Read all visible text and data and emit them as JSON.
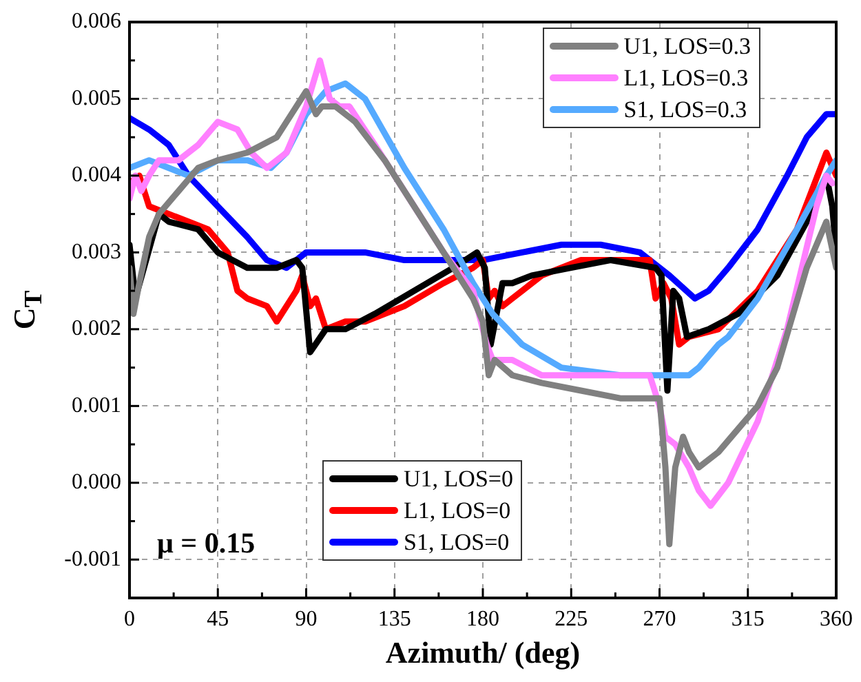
{
  "chart_data": {
    "type": "line",
    "xlabel": "Azimuth/ (deg)",
    "ylabel": "C$_{T}$",
    "annotations": [
      "μ = 0.15"
    ],
    "xlim": [
      0,
      360
    ],
    "xticks": [
      0,
      {
        "value": 22.5,
        "label": null
      },
      45,
      {
        "value": 67.5,
        "label": null
      },
      90,
      {
        "value": 112.5,
        "label": null
      },
      135,
      {
        "value": 157.5,
        "label": null
      },
      180,
      {
        "value": 202.5,
        "label": null
      },
      225,
      {
        "value": 247.5,
        "label": null
      },
      270,
      {
        "value": 292.5,
        "label": null
      },
      315,
      {
        "value": 337.5,
        "label": null
      },
      360
    ],
    "ylim": [
      -0.0015,
      0.006
    ],
    "yticks": [
      {
        "value": -0.0015,
        "label": null
      },
      -0.001,
      {
        "value": -0.0005,
        "label": null
      },
      {
        "value": 0,
        "label": "0.000"
      },
      {
        "value": 0.0005,
        "label": null
      },
      0.001,
      {
        "value": 0.0015,
        "label": null
      },
      0.002,
      {
        "value": 0.0025,
        "label": null
      },
      0.003,
      {
        "value": 0.0035,
        "label": null
      },
      0.004,
      {
        "value": 0.0045,
        "label": null
      },
      0.005,
      {
        "value": 0.0055,
        "label": null
      },
      0.006
    ],
    "grid": true,
    "legend": "top right",
    "line_style": "solid",
    "marker": "none",
    "series": [
      {
        "name": "U1, LOS=0.3",
        "color": "#808080",
        "x": [
          0,
          2,
          5,
          10,
          15,
          25,
          35,
          45,
          60,
          75,
          85,
          90,
          95,
          98,
          105,
          115,
          130,
          145,
          160,
          175,
          180,
          183,
          186,
          195,
          210,
          230,
          250,
          270,
          273,
          275,
          278,
          282,
          285,
          290,
          300,
          310,
          320,
          330,
          345,
          355,
          360
        ],
        "values": [
          0.0028,
          0.0022,
          0.0026,
          0.0032,
          0.0035,
          0.0038,
          0.0041,
          0.0042,
          0.0043,
          0.0045,
          0.0049,
          0.0051,
          0.0048,
          0.0049,
          0.0049,
          0.0047,
          0.0042,
          0.0036,
          0.003,
          0.0024,
          0.0021,
          0.0014,
          0.0016,
          0.0014,
          0.0013,
          0.0012,
          0.0011,
          0.0011,
          0.0002,
          -0.0008,
          0.0002,
          0.0006,
          0.0004,
          0.0002,
          0.0004,
          0.0007,
          0.001,
          0.0015,
          0.0028,
          0.0034,
          0.0028
        ]
      },
      {
        "name": "L1, LOS=0.3",
        "color": "#ff80ff",
        "x": [
          0,
          3,
          6,
          10,
          15,
          25,
          35,
          45,
          55,
          62,
          70,
          80,
          90,
          97,
          102,
          107,
          112,
          125,
          145,
          160,
          175,
          182,
          185,
          195,
          210,
          240,
          265,
          270,
          273,
          278,
          285,
          290,
          296,
          305,
          320,
          335,
          350,
          355,
          358
        ],
        "values": [
          0.0037,
          0.004,
          0.0038,
          0.004,
          0.0042,
          0.0042,
          0.0044,
          0.0047,
          0.0046,
          0.0043,
          0.0041,
          0.0043,
          0.0049,
          0.0055,
          0.005,
          0.0049,
          0.0049,
          0.0044,
          0.0036,
          0.003,
          0.0025,
          0.0018,
          0.0016,
          0.0016,
          0.0014,
          0.0014,
          0.0014,
          0.001,
          0.0006,
          0.0005,
          0.0002,
          -0.0001,
          -0.0003,
          0,
          0.0008,
          0.002,
          0.0036,
          0.004,
          0.0039
        ]
      },
      {
        "name": "S1, LOS=0.3",
        "color": "#55aaff",
        "x": [
          0,
          10,
          20,
          30,
          45,
          60,
          72,
          80,
          90,
          100,
          110,
          120,
          140,
          160,
          175,
          185,
          200,
          220,
          250,
          270,
          285,
          290,
          300,
          305,
          320,
          340,
          355,
          360
        ],
        "values": [
          0.0041,
          0.0042,
          0.0041,
          0.004,
          0.0042,
          0.0042,
          0.0041,
          0.0043,
          0.0048,
          0.0051,
          0.0052,
          0.005,
          0.0041,
          0.0033,
          0.0026,
          0.0022,
          0.0018,
          0.0015,
          0.0014,
          0.0014,
          0.0014,
          0.0015,
          0.0018,
          0.0019,
          0.0024,
          0.0033,
          0.004,
          0.0042
        ]
      },
      {
        "name": "U1, LOS=0",
        "color": "#000000",
        "x": [
          0,
          3,
          15,
          20,
          35,
          45,
          60,
          75,
          85,
          88,
          92,
          100,
          110,
          125,
          145,
          165,
          177,
          181,
          184,
          190,
          195,
          205,
          225,
          245,
          268,
          271,
          274,
          277,
          280,
          284,
          295,
          310,
          330,
          345,
          355,
          358,
          360
        ],
        "values": [
          0.0031,
          0.0024,
          0.0035,
          0.0034,
          0.0033,
          0.003,
          0.0028,
          0.0028,
          0.0029,
          0.0028,
          0.0017,
          0.002,
          0.002,
          0.0022,
          0.0025,
          0.0028,
          0.003,
          0.0028,
          0.0018,
          0.0026,
          0.0026,
          0.0027,
          0.0028,
          0.0029,
          0.0028,
          0.0027,
          0.0012,
          0.0025,
          0.0024,
          0.0019,
          0.002,
          0.0022,
          0.0027,
          0.0034,
          0.004,
          0.0036,
          0.003
        ]
      },
      {
        "name": "L1, LOS=0",
        "color": "#ff0000",
        "x": [
          0,
          5,
          10,
          20,
          30,
          40,
          50,
          55,
          60,
          70,
          75,
          85,
          88,
          92,
          95,
          100,
          110,
          120,
          140,
          160,
          175,
          180,
          183,
          186,
          190,
          195,
          210,
          230,
          250,
          265,
          268,
          272,
          276,
          280,
          285,
          300,
          320,
          340,
          355,
          360
        ],
        "values": [
          0.0039,
          0.004,
          0.0036,
          0.0035,
          0.0034,
          0.0033,
          0.003,
          0.0025,
          0.0024,
          0.0023,
          0.0021,
          0.0025,
          0.0027,
          0.0023,
          0.0024,
          0.002,
          0.0021,
          0.0021,
          0.0023,
          0.0026,
          0.0028,
          0.0029,
          0.0024,
          0.0025,
          0.0023,
          0.0024,
          0.0027,
          0.0029,
          0.0029,
          0.0029,
          0.0024,
          0.0026,
          0.0024,
          0.0018,
          0.0019,
          0.002,
          0.0025,
          0.0033,
          0.0043,
          0.004
        ]
      },
      {
        "name": "S1, LOS=0",
        "color": "#0000ff",
        "x": [
          0,
          10,
          20,
          30,
          45,
          60,
          70,
          80,
          90,
          100,
          120,
          140,
          160,
          180,
          200,
          220,
          240,
          260,
          275,
          288,
          295,
          305,
          320,
          335,
          345,
          355,
          360
        ],
        "values": [
          0.00475,
          0.0046,
          0.0044,
          0.004,
          0.0036,
          0.0032,
          0.0029,
          0.0028,
          0.003,
          0.003,
          0.003,
          0.0029,
          0.0029,
          0.0029,
          0.003,
          0.0031,
          0.0031,
          0.003,
          0.0027,
          0.0024,
          0.0025,
          0.0028,
          0.0033,
          0.004,
          0.0045,
          0.0048,
          0.0048
        ]
      }
    ]
  }
}
